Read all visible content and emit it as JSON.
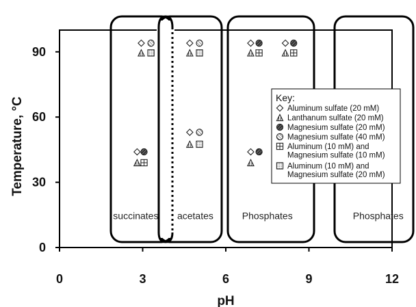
{
  "chart_data": {
    "type": "scatter",
    "title": "",
    "xlabel": "pH",
    "ylabel": "Temperature, °C",
    "xlim": [
      0,
      12
    ],
    "ylim": [
      0,
      100
    ],
    "x_ticks": [
      "0",
      "3",
      "6",
      "9",
      "12"
    ],
    "y_ticks": [
      "0",
      "30",
      "60",
      "90"
    ],
    "grid": false,
    "legend_placement": "right",
    "legend_title": "Key:",
    "group_labels": [
      {
        "text": "succinates",
        "x": 2.75,
        "y": 13
      },
      {
        "text": "acetates",
        "x": 4.9,
        "y": 13
      },
      {
        "text": "Phosphates",
        "x": 7.5,
        "y": 13
      },
      {
        "text": "Phosphates",
        "x": 11.5,
        "y": 13
      }
    ],
    "series": [
      {
        "name": "Aluminum sulfate (20 mM)",
        "marker": "diamond",
        "points": [
          [
            2.95,
            94
          ],
          [
            2.8,
            44
          ],
          [
            4.7,
            94
          ],
          [
            4.7,
            53
          ],
          [
            6.9,
            94
          ],
          [
            8.15,
            94
          ],
          [
            6.9,
            44
          ]
        ]
      },
      {
        "name": "Lanthanum sulfate (20 mM)",
        "marker": "triangle",
        "points": [
          [
            2.95,
            89.5
          ],
          [
            2.8,
            39
          ],
          [
            4.7,
            89.5
          ],
          [
            4.7,
            47.5
          ],
          [
            6.9,
            89.5
          ],
          [
            8.15,
            89.5
          ],
          [
            6.9,
            39
          ]
        ]
      },
      {
        "name": "Magnesium sulfate (20 mM)",
        "marker": "circle-hatch",
        "points": [
          [
            3.05,
            44
          ],
          [
            7.2,
            94
          ],
          [
            8.45,
            94
          ],
          [
            7.2,
            44
          ]
        ]
      },
      {
        "name": "Magnesium sulfate (40 mM)",
        "marker": "circle-slash",
        "points": [
          [
            3.3,
            94
          ],
          [
            5.05,
            94
          ],
          [
            5.05,
            53
          ]
        ]
      },
      {
        "name": "Aluminum (10 mM) and Magnesium sulfate (10 mM)",
        "marker": "square-grid",
        "points": [
          [
            3.05,
            39
          ],
          [
            7.2,
            89.5
          ],
          [
            8.45,
            89.5
          ]
        ]
      },
      {
        "name": "Aluminum (10 mM) and Magnesium sulfate (20 mM)",
        "marker": "square-dots",
        "points": [
          [
            3.3,
            89.5
          ],
          [
            5.05,
            89.5
          ],
          [
            5.05,
            47.5
          ]
        ]
      }
    ],
    "legend_labels": [
      [
        "Aluminum sulfate (20 mM)"
      ],
      [
        "Lanthanum sulfate (20 mM)"
      ],
      [
        "Magnesium sulfate (20 mM)"
      ],
      [
        "Magnesium sulfate (40 mM)"
      ],
      [
        "Aluminum (10 mM) and",
        "Magnesium sulfate (10 mM)"
      ],
      [
        "Aluminum (10 mM) and",
        "Magnesium sulfate (20 mM)"
      ]
    ]
  }
}
